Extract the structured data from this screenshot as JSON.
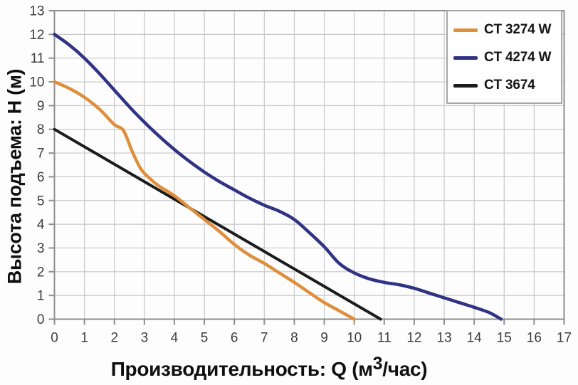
{
  "colors": {
    "background": "#fdfdfd",
    "grid": "#c7c7c7",
    "border": "#8f8f8f",
    "tick_label": "#3d3d3d",
    "title_text": "#0f0f0f",
    "legend_border": "#a6a6a6"
  },
  "chart_data": {
    "type": "line",
    "title": "",
    "xlabel": "Производительность: Q (м3/час)",
    "xlabel_parts": {
      "prefix": "Производительность: Q (м",
      "sup": "3",
      "suffix": "/час)"
    },
    "ylabel": "Высота подъема: H (м)",
    "xlim": [
      0,
      17
    ],
    "ylim": [
      0,
      13
    ],
    "xticks": [
      0,
      1,
      2,
      3,
      4,
      5,
      6,
      7,
      8,
      9,
      10,
      11,
      12,
      13,
      14,
      15,
      16,
      17
    ],
    "yticks": [
      0,
      1,
      2,
      3,
      4,
      5,
      6,
      7,
      8,
      9,
      10,
      11,
      12,
      13
    ],
    "grid": true,
    "legend_position": "top-right",
    "series": [
      {
        "name": "CT 3274 W",
        "color": "#de8f3c",
        "width": 4.5,
        "points": [
          [
            0,
            10
          ],
          [
            0.5,
            9.72
          ],
          [
            1,
            9.35
          ],
          [
            1.5,
            8.85
          ],
          [
            2,
            8.2
          ],
          [
            2.3,
            7.95
          ],
          [
            2.6,
            7.05
          ],
          [
            2.9,
            6.3
          ],
          [
            3.25,
            5.85
          ],
          [
            3.5,
            5.6
          ],
          [
            4,
            5.2
          ],
          [
            4.5,
            4.7
          ],
          [
            5,
            4.2
          ],
          [
            5.5,
            3.7
          ],
          [
            6,
            3.15
          ],
          [
            6.5,
            2.7
          ],
          [
            7,
            2.35
          ],
          [
            7.5,
            1.95
          ],
          [
            8,
            1.55
          ],
          [
            8.5,
            1.12
          ],
          [
            9,
            0.7
          ],
          [
            9.5,
            0.35
          ],
          [
            10,
            0
          ]
        ]
      },
      {
        "name": "CT 4274 W",
        "color": "#303384",
        "width": 4.5,
        "points": [
          [
            0,
            12
          ],
          [
            0.5,
            11.55
          ],
          [
            1,
            11
          ],
          [
            1.5,
            10.35
          ],
          [
            2,
            9.65
          ],
          [
            2.5,
            8.95
          ],
          [
            3,
            8.3
          ],
          [
            3.5,
            7.7
          ],
          [
            4,
            7.15
          ],
          [
            4.5,
            6.65
          ],
          [
            5,
            6.2
          ],
          [
            5.5,
            5.8
          ],
          [
            6,
            5.45
          ],
          [
            6.5,
            5.1
          ],
          [
            7,
            4.8
          ],
          [
            7.5,
            4.55
          ],
          [
            8,
            4.2
          ],
          [
            8.5,
            3.65
          ],
          [
            9,
            3.05
          ],
          [
            9.5,
            2.35
          ],
          [
            10,
            1.95
          ],
          [
            10.5,
            1.7
          ],
          [
            11,
            1.55
          ],
          [
            11.5,
            1.45
          ],
          [
            12,
            1.3
          ],
          [
            12.5,
            1.1
          ],
          [
            13,
            0.9
          ],
          [
            13.5,
            0.7
          ],
          [
            14,
            0.5
          ],
          [
            14.5,
            0.28
          ],
          [
            14.9,
            0
          ]
        ]
      },
      {
        "name": "CT 3674",
        "color": "#1c1c1c",
        "width": 4,
        "points": [
          [
            0,
            8
          ],
          [
            10.88,
            0
          ]
        ]
      }
    ]
  }
}
